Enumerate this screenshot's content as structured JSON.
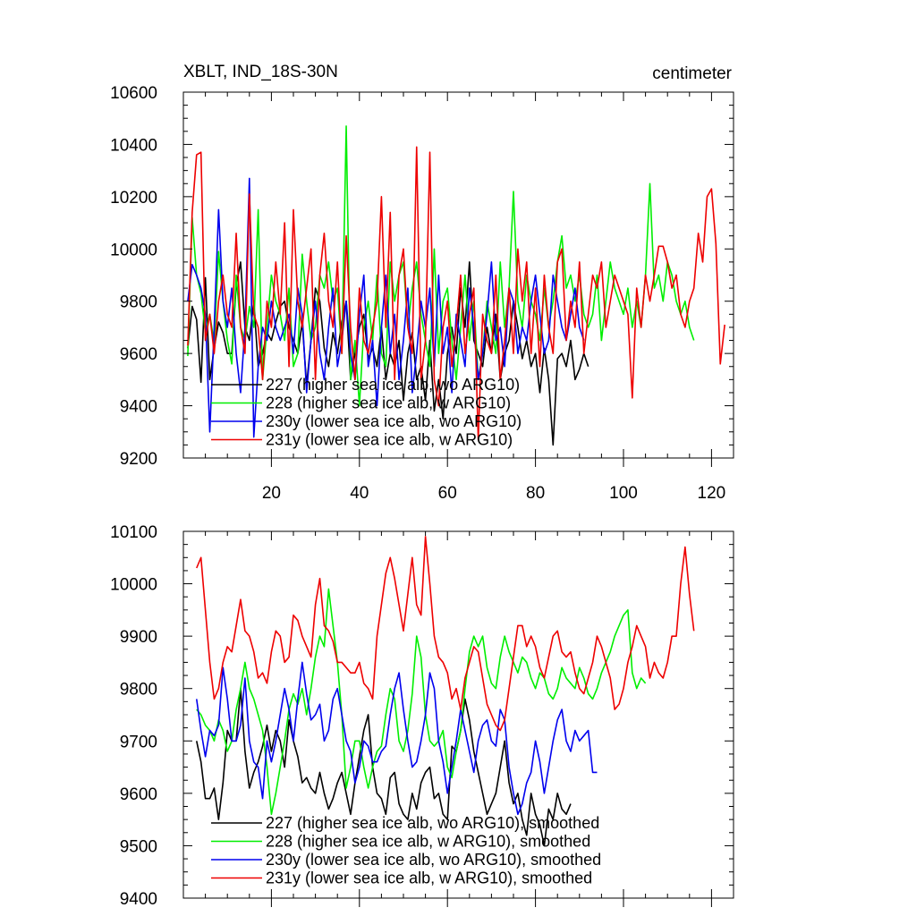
{
  "chart_data": [
    {
      "type": "line",
      "title": "XBLT, IND_18S-30N",
      "units_label": "centimeter",
      "xlim": [
        0,
        125
      ],
      "ylim": [
        9200,
        10600
      ],
      "x_ticks": [
        20,
        40,
        60,
        80,
        100,
        120
      ],
      "x_tick_labels": [
        "20",
        "40",
        "60",
        "80",
        "100",
        "120"
      ],
      "y_ticks": [
        9200,
        9400,
        9600,
        9800,
        10000,
        10200,
        10400,
        10600
      ],
      "y_tick_labels": [
        "9200",
        "9400",
        "9600",
        "9800",
        "10000",
        "10200",
        "10400",
        "10600"
      ],
      "legend": {
        "placement": "bottom-left"
      },
      "series": [
        {
          "name": "227 (higher sea ice alb, wo ARG10)",
          "color": "#000000",
          "x_start": 1,
          "values": [
            9620,
            9780,
            9730,
            9490,
            9890,
            9500,
            9620,
            9720,
            9680,
            9600,
            9600,
            9860,
            9950,
            9700,
            9650,
            9800,
            9550,
            9600,
            9680,
            9650,
            9720,
            9780,
            9800,
            9700,
            9650,
            9600,
            9720,
            9480,
            9650,
            9850,
            9800,
            9620,
            9550,
            9680,
            9600,
            9720,
            9800,
            9500,
            9600,
            9700,
            9750,
            9580,
            9620,
            9550,
            9700,
            9500,
            9600,
            9550,
            9650,
            9420,
            9600,
            9680,
            9500,
            9550,
            9420,
            9650,
            9380,
            9500,
            9350,
            9600,
            9700,
            9600,
            9850,
            9700,
            9950,
            9650,
            9600,
            9550,
            9700,
            9600,
            9750,
            9500,
            9600,
            9650,
            9800,
            9700,
            9580,
            9650,
            9550,
            9600,
            9450,
            9620,
            9500,
            9250,
            9580,
            9600,
            9550,
            9650,
            9500,
            9540,
            9600,
            9550
          ]
        },
        {
          "name": "228 (higher sea ice alb, w ARG10)",
          "color": "#00ee00",
          "x_start": 1,
          "values": [
            9590,
            10120,
            9900,
            9830,
            9680,
            9750,
            9640,
            9990,
            9800,
            9650,
            9560,
            9900,
            9700,
            9650,
            9780,
            9700,
            10150,
            9500,
            9700,
            9900,
            9800,
            9750,
            9650,
            9850,
            9550,
            9600,
            9980,
            9800,
            9650,
            9700,
            9900,
            9850,
            9950,
            9800,
            9850,
            9600,
            10470,
            9500,
            9650,
            9400,
            9700,
            9800,
            9650,
            9900,
            9600,
            9550,
            9950,
            9800,
            9900,
            9950,
            9700,
            9850,
            9950,
            9750,
            9650,
            9550,
            10000,
            9600,
            9800,
            9850,
            9650,
            9500,
            9700,
            9900,
            9650,
            9800,
            9500,
            9600,
            9800,
            9700,
            9600,
            9950,
            9700,
            9850,
            10220,
            9800,
            9700,
            9900,
            9800,
            9750,
            9650,
            9850,
            9700,
            9800,
            9950,
            10050,
            9850,
            9900,
            9800,
            9900,
            9750,
            9700,
            9750,
            9900,
            9650,
            9800,
            9950,
            9850,
            9800,
            9750,
            9850,
            9700,
            9800,
            9700,
            9900,
            10250,
            9850,
            9900,
            9800,
            9950,
            9900,
            9800,
            9750,
            9800,
            9700,
            9650
          ]
        },
        {
          "name": "230y (lower sea ice alb, wo ARG10)",
          "color": "#0000ee",
          "x_start": 1,
          "values": [
            9800,
            9940,
            9900,
            9850,
            9750,
            9300,
            9700,
            10150,
            9800,
            9700,
            9850,
            9600,
            9450,
            9700,
            10270,
            9280,
            9550,
            9700,
            9650,
            9800,
            9700,
            9650,
            9700,
            9750,
            9600,
            9850,
            9750,
            9450,
            9650,
            9800,
            9600,
            9500,
            9700,
            9850,
            9550,
            9650,
            9800,
            9600,
            9500,
            9750,
            9900,
            9550,
            9650,
            9400,
            9700,
            9900,
            9600,
            9750,
            9500,
            9650,
            9850,
            9450,
            9600,
            9800,
            9700,
            9850,
            9550,
            9900,
            9600,
            9700,
            9450,
            9750,
            9650,
            9550,
            9850,
            9700,
            9500,
            9600,
            9750,
            9950,
            9650,
            9700,
            9550,
            9850,
            9800,
            9600,
            9700,
            9650,
            9800,
            9900,
            9750,
            9600,
            9650,
            9900,
            9800,
            9700,
            9650,
            9750,
            9850,
            9700,
            9650
          ]
        },
        {
          "name": "231y (lower sea ice alb, w ARG10)",
          "color": "#ee0000",
          "x_start": 1,
          "values": [
            9630,
            10140,
            10360,
            10370,
            9650,
            9750,
            9600,
            9800,
            9900,
            9750,
            9700,
            10060,
            9700,
            9600,
            10210,
            9750,
            9700,
            9500,
            9800,
            9700,
            9950,
            9750,
            10100,
            9550,
            10150,
            9800,
            9700,
            9850,
            10000,
            9500,
            9900,
            10060,
            9800,
            9700,
            9950,
            9600,
            10050,
            9700,
            9500,
            9850,
            9650,
            9600,
            9700,
            9800,
            10200,
            9700,
            10140,
            9500,
            9900,
            10000,
            9700,
            9600,
            10390,
            9500,
            9650,
            10370,
            9500,
            9400,
            9700,
            9800,
            9550,
            9700,
            9900,
            9600,
            9750,
            9850,
            9270,
            9750,
            9650,
            9600,
            9900,
            9500,
            9650,
            9850,
            9600,
            10000,
            9800,
            9950,
            9600,
            9850,
            9550,
            9900,
            9700,
            9600,
            9950,
            10000,
            9650,
            9800,
            9700,
            9950,
            9600,
            9750,
            9900,
            9850,
            9950,
            9700,
            9800,
            9900,
            9850,
            9800,
            9750,
            9430,
            9850,
            9700,
            9900,
            9800,
            9900,
            10010,
            10010,
            9950,
            9850,
            9900,
            9750,
            9700,
            9800,
            9850,
            10060,
            9950,
            10200,
            10230,
            10020,
            9560,
            9710
          ]
        }
      ]
    },
    {
      "type": "line",
      "title": "",
      "units_label": "",
      "xlim": [
        0,
        125
      ],
      "ylim": [
        9400,
        10100
      ],
      "x_ticks": [
        20,
        40,
        60,
        80,
        100,
        120
      ],
      "x_tick_labels": [
        "",
        "",
        "",
        "",
        "",
        ""
      ],
      "y_ticks": [
        9400,
        9500,
        9600,
        9700,
        9800,
        9900,
        10000,
        10100
      ],
      "y_tick_labels": [
        "9400",
        "9500",
        "9600",
        "9700",
        "9800",
        "9900",
        "10000",
        "10100"
      ],
      "legend": {
        "placement": "bottom-left"
      },
      "series": [
        {
          "name": "227 (higher sea ice alb, wo ARG10), smoothed",
          "color": "#000000",
          "x_start": 3,
          "values": [
            9700,
            9660,
            9590,
            9590,
            9610,
            9550,
            9620,
            9720,
            9700,
            9700,
            9800,
            9680,
            9610,
            9640,
            9660,
            9690,
            9730,
            9680,
            9720,
            9700,
            9650,
            9740,
            9700,
            9670,
            9620,
            9630,
            9610,
            9600,
            9640,
            9600,
            9570,
            9590,
            9620,
            9640,
            9600,
            9560,
            9620,
            9670,
            9720,
            9750,
            9650,
            9600,
            9590,
            9560,
            9630,
            9640,
            9580,
            9560,
            9550,
            9600,
            9570,
            9620,
            9640,
            9650,
            9590,
            9600,
            9560,
            9550,
            9690,
            9680,
            9720,
            9780,
            9740,
            9680,
            9640,
            9600,
            9560,
            9580,
            9600,
            9650,
            9700,
            9620,
            9580,
            9600,
            9550,
            9520,
            9600,
            9560,
            9540,
            9500,
            9570,
            9550,
            9600,
            9570,
            9560,
            9580
          ]
        },
        {
          "name": "228 (higher sea ice alb, w ARG10), smoothed",
          "color": "#00ee00",
          "x_start": 3,
          "values": [
            9760,
            9750,
            9730,
            9720,
            9700,
            9740,
            9720,
            9680,
            9700,
            9760,
            9800,
            9850,
            9800,
            9780,
            9750,
            9720,
            9650,
            9560,
            9600,
            9650,
            9700,
            9760,
            9790,
            9770,
            9800,
            9750,
            9800,
            9860,
            9900,
            9880,
            9990,
            9920,
            9850,
            9750,
            9610,
            9650,
            9700,
            9700,
            9650,
            9610,
            9650,
            9680,
            9690,
            9750,
            9800,
            9780,
            9700,
            9680,
            9720,
            9790,
            9900,
            9860,
            9750,
            9700,
            9690,
            9700,
            9720,
            9650,
            9630,
            9680,
            9720,
            9800,
            9870,
            9900,
            9880,
            9900,
            9840,
            9810,
            9800,
            9860,
            9900,
            9870,
            9850,
            9830,
            9860,
            9850,
            9820,
            9800,
            9830,
            9820,
            9790,
            9780,
            9800,
            9840,
            9820,
            9810,
            9800,
            9840,
            9820,
            9790,
            9780,
            9800,
            9830,
            9850,
            9870,
            9900,
            9920,
            9940,
            9950,
            9830,
            9800,
            9820,
            9810
          ]
        },
        {
          "name": "230y (lower sea ice alb, wo ARG10), smoothed",
          "color": "#0000ee",
          "x_start": 3,
          "values": [
            9780,
            9720,
            9670,
            9720,
            9710,
            9730,
            9840,
            9780,
            9700,
            9700,
            9730,
            9820,
            9700,
            9660,
            9650,
            9590,
            9700,
            9660,
            9700,
            9750,
            9800,
            9760,
            9700,
            9780,
            9850,
            9790,
            9740,
            9750,
            9770,
            9700,
            9720,
            9780,
            9800,
            9750,
            9700,
            9680,
            9620,
            9650,
            9700,
            9690,
            9660,
            9660,
            9680,
            9690,
            9750,
            9800,
            9830,
            9760,
            9700,
            9650,
            9660,
            9700,
            9750,
            9830,
            9800,
            9700,
            9660,
            9600,
            9650,
            9700,
            9760,
            9720,
            9680,
            9640,
            9700,
            9730,
            9740,
            9700,
            9690,
            9760,
            9740,
            9650,
            9600,
            9560,
            9580,
            9620,
            9640,
            9700,
            9660,
            9600,
            9650,
            9700,
            9740,
            9760,
            9700,
            9680,
            9720,
            9700,
            9710,
            9720,
            9640,
            9640
          ]
        },
        {
          "name": "231y (lower sea ice alb, w ARG10), smoothed",
          "color": "#ee0000",
          "x_start": 3,
          "values": [
            10030,
            10050,
            9950,
            9850,
            9780,
            9800,
            9850,
            9880,
            9870,
            9920,
            9970,
            9910,
            9900,
            9870,
            9820,
            9830,
            9810,
            9870,
            9910,
            9900,
            9850,
            9860,
            9940,
            9930,
            9900,
            9880,
            9860,
            9960,
            10010,
            9920,
            9910,
            9890,
            9850,
            9850,
            9840,
            9830,
            9830,
            9850,
            9810,
            9800,
            9780,
            9900,
            9960,
            10020,
            10050,
            10010,
            9960,
            9910,
            9980,
            10050,
            9960,
            9940,
            10090,
            10000,
            9900,
            9860,
            9850,
            9830,
            9780,
            9800,
            9760,
            9820,
            9850,
            9880,
            9870,
            9820,
            9770,
            9750,
            9730,
            9720,
            9740,
            9800,
            9860,
            9920,
            9920,
            9880,
            9900,
            9880,
            9840,
            9820,
            9860,
            9900,
            9910,
            9870,
            9860,
            9870,
            9830,
            9800,
            9790,
            9820,
            9850,
            9900,
            9880,
            9850,
            9820,
            9760,
            9770,
            9800,
            9850,
            9880,
            9920,
            9900,
            9880,
            9820,
            9850,
            9830,
            9820,
            9850,
            9900,
            9900,
            10000,
            10070,
            9980,
            9910
          ]
        }
      ]
    }
  ]
}
